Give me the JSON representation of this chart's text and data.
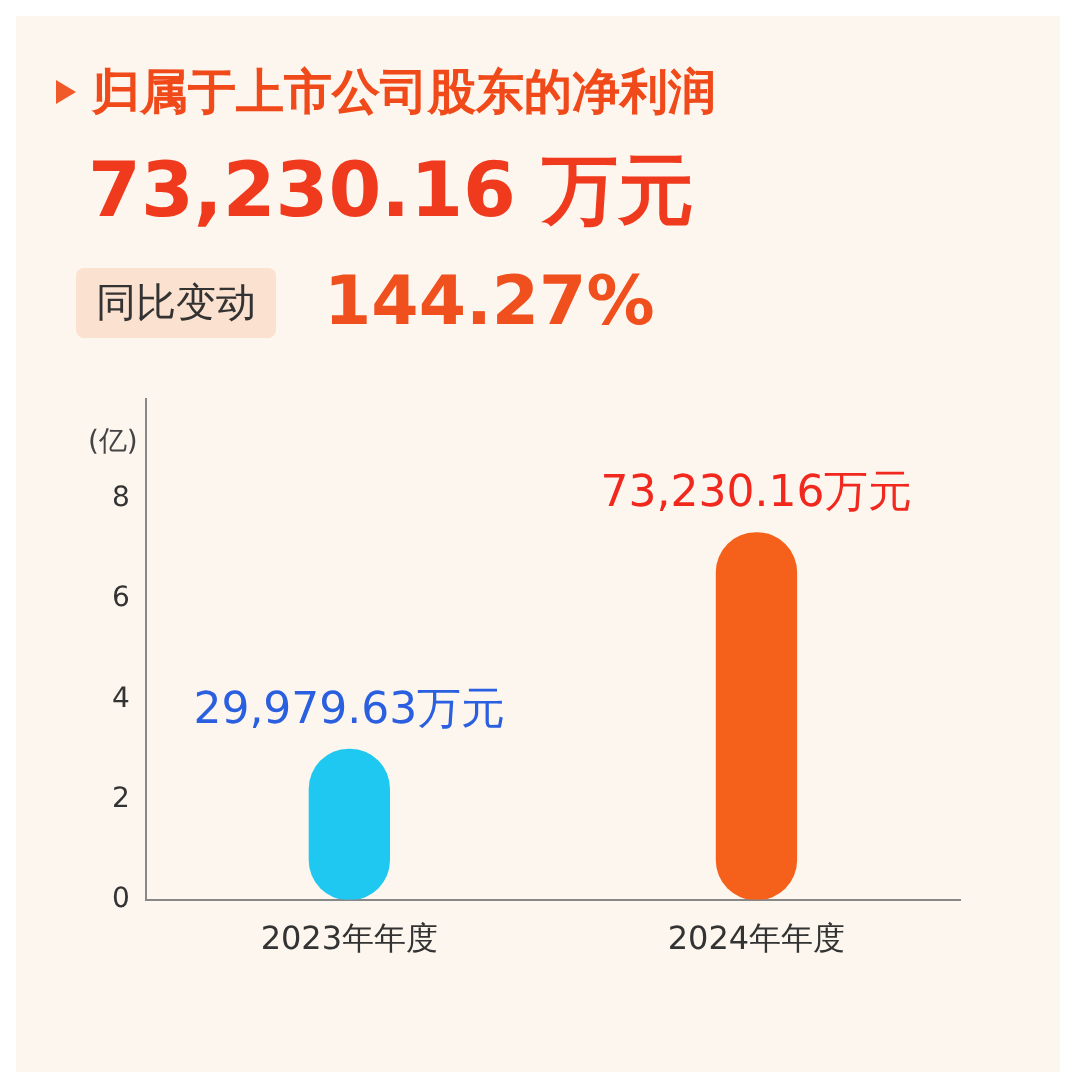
{
  "chart_data": {
    "type": "bar",
    "title": "归属于上市公司股东的净利润",
    "subtitle": "73,230.16 万元",
    "annotations": [
      "同比变动",
      "144.27%",
      {
        "text": "29,979.63万元",
        "x": "2023年年度",
        "y": 2.998
      },
      {
        "text": "73,230.16万元",
        "x": "2024年年度",
        "y": 7.323
      }
    ],
    "ylabel": "(亿)",
    "categories": [
      "2023年年度",
      "2024年年度"
    ],
    "values": [
      2.998,
      7.323
    ],
    "colors": [
      "#1ec8f0",
      "#f5601a"
    ],
    "ylim": [
      0,
      10
    ],
    "yticks": [
      0,
      2,
      4,
      6,
      8
    ],
    "grid": false,
    "legend": false
  }
}
